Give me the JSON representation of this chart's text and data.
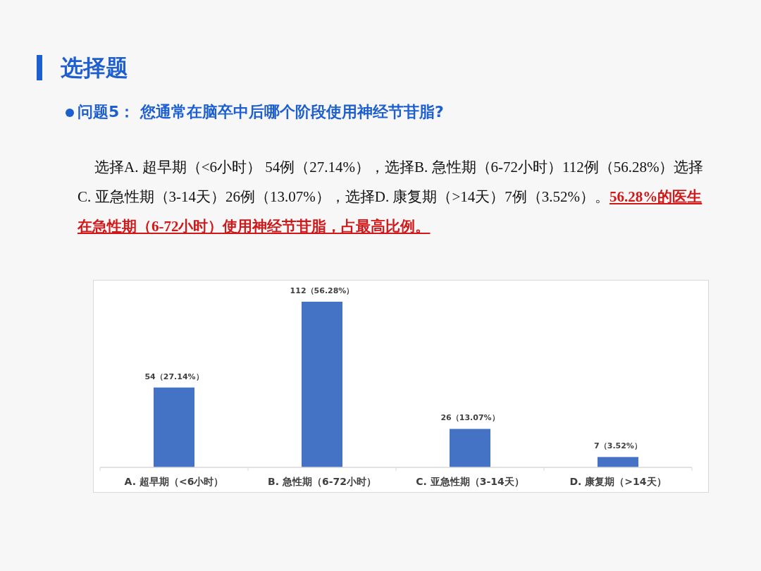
{
  "chart_data": {
    "type": "bar",
    "title": "选择题",
    "subtitle": "问题5：  您通常在脑卒中后哪个阶段使用神经节苷脂?",
    "annotations": [
      "选择A. 超早期（<6小时） 54例（27.14%），选择B. 急性期（6-72小时）112例（56.28%）选择C. 亚急性期（3-14天）26例（13.07%），选择D. 康复期（>14天）7例（3.52%）。",
      "56.28%的医生在急性期（6-72小时）使用神经节苷脂，占最高比例。"
    ],
    "categories": [
      "A. 超早期（<6小时）",
      "B. 急性期（6-72小时）",
      "C. 亚急性期（3-14天）",
      "D. 康复期（>14天）"
    ],
    "values": [
      54,
      112,
      26,
      7
    ],
    "value_labels": [
      "54（27.14%）",
      "112（56.28%）",
      "26（13.07%）",
      "7（3.52%）"
    ],
    "color": "#4472c4"
  }
}
